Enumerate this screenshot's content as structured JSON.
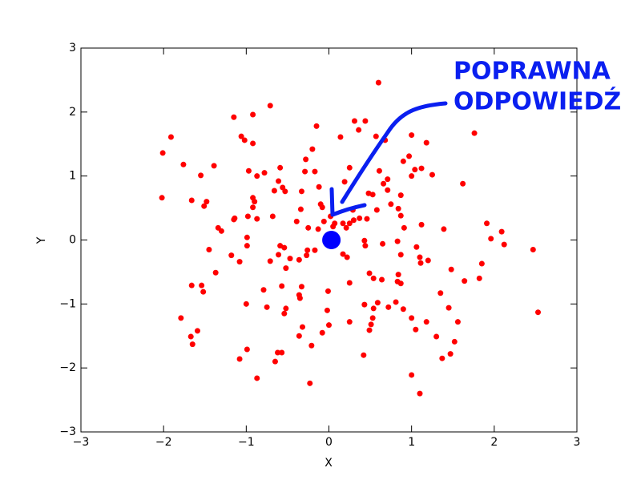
{
  "chart_data": {
    "type": "scatter",
    "xlabel": "X",
    "ylabel": "Y",
    "xlim": [
      -3,
      3
    ],
    "ylim": [
      -3,
      3
    ],
    "xticks": [
      {
        "value": -3,
        "label": "−3"
      },
      {
        "value": -2,
        "label": "−2"
      },
      {
        "value": -1,
        "label": "−1"
      },
      0,
      1,
      2,
      3
    ],
    "yticks": [
      {
        "value": -3,
        "label": "−3"
      },
      {
        "value": -2,
        "label": "−2"
      },
      {
        "value": -1,
        "label": "−1"
      },
      0,
      1,
      2,
      3
    ],
    "series": [
      {
        "color": "#ff0000",
        "x": [
          0.6,
          -0.71,
          -1.15,
          -0.92,
          -1.91,
          -1.06,
          -1.02,
          -0.92,
          -0.15,
          0.31,
          0.44,
          0.36,
          0.14,
          0.57,
          0.68,
          1.0,
          1.18,
          1.76,
          -2.01,
          -1.76,
          -1.39,
          -1.55,
          -0.97,
          -0.78,
          -0.87,
          -0.59,
          -0.28,
          -0.2,
          -0.29,
          -0.17,
          0.25,
          0.61,
          0.9,
          0.97,
          1.12,
          1.04,
          1.25,
          1.0,
          0.71,
          0.66,
          -0.61,
          -0.56,
          -0.53,
          -0.66,
          -0.33,
          -0.12,
          0.19,
          0.48,
          0.53,
          0.71,
          0.87,
          1.62,
          -2.02,
          -1.66,
          -1.48,
          -1.51,
          -0.92,
          -0.9,
          -0.92,
          -1.14,
          -1.15,
          -0.98,
          -0.87,
          -0.68,
          -0.34,
          -0.1,
          -0.08,
          0.02,
          0.29,
          0.37,
          0.46,
          0.58,
          0.75,
          0.84,
          0.87,
          0.07,
          0.17,
          0.25,
          0.3,
          -0.06,
          0.05,
          -0.39,
          -0.25,
          -0.13,
          0.21,
          0.91,
          1.12,
          1.39,
          1.91,
          2.09,
          1.96,
          2.12,
          2.47,
          -1.34,
          -1.3,
          -0.99,
          -0.99,
          -1.45,
          -1.18,
          -1.08,
          -0.59,
          -0.54,
          -0.61,
          -0.47,
          -0.36,
          -0.27,
          -0.26,
          -0.17,
          -0.71,
          -0.52,
          0.17,
          0.22,
          0.43,
          0.44,
          0.65,
          0.83,
          0.87,
          1.06,
          1.1,
          1.2,
          1.11,
          1.48,
          1.85,
          -1.37,
          -1.66,
          -1.54,
          -1.52,
          -0.79,
          -0.57,
          -0.33,
          -0.01,
          0.25,
          0.49,
          0.54,
          0.64,
          0.83,
          0.87,
          0.84,
          1.64,
          1.82,
          1.35,
          -0.35,
          -0.36,
          -1.0,
          -0.75,
          -0.52,
          -0.54,
          -0.02,
          0.43,
          0.59,
          0.54,
          0.72,
          0.81,
          0.9,
          1.45,
          -1.79,
          0.0,
          0.25,
          0.53,
          0.51,
          0.49,
          1.0,
          1.05,
          1.18,
          1.56,
          -1.59,
          -0.32,
          -0.08,
          -1.67,
          -1.65,
          -0.36,
          -0.21,
          -0.99,
          -0.62,
          -0.57,
          0.42,
          1.52,
          1.3,
          1.47,
          1.37,
          -1.08,
          -0.65,
          -0.87,
          1.0,
          -0.23,
          1.1,
          2.53
        ],
        "y": [
          2.46,
          2.1,
          1.92,
          1.96,
          1.61,
          1.62,
          1.56,
          1.51,
          1.78,
          1.86,
          1.86,
          1.72,
          1.61,
          1.62,
          1.56,
          1.64,
          1.52,
          1.67,
          1.36,
          1.18,
          1.16,
          1.01,
          1.08,
          1.05,
          1.0,
          1.13,
          1.26,
          1.42,
          1.07,
          1.07,
          1.13,
          1.08,
          1.23,
          1.31,
          1.12,
          1.1,
          1.02,
          1.0,
          0.95,
          0.88,
          0.92,
          0.82,
          0.76,
          0.77,
          0.76,
          0.83,
          0.91,
          0.73,
          0.71,
          0.78,
          0.7,
          0.88,
          0.66,
          0.62,
          0.6,
          0.53,
          0.66,
          0.6,
          0.51,
          0.34,
          0.32,
          0.37,
          0.33,
          0.37,
          0.48,
          0.56,
          0.51,
          0.37,
          0.47,
          0.34,
          0.33,
          0.47,
          0.56,
          0.49,
          0.38,
          0.26,
          0.26,
          0.26,
          0.31,
          0.29,
          0.21,
          0.29,
          0.19,
          0.17,
          0.19,
          0.19,
          0.24,
          0.17,
          0.26,
          0.13,
          0.02,
          -0.07,
          -0.15,
          0.19,
          0.14,
          0.04,
          -0.09,
          -0.15,
          -0.24,
          -0.34,
          -0.09,
          -0.12,
          -0.23,
          -0.29,
          -0.31,
          -0.24,
          -0.16,
          -0.16,
          -0.33,
          -0.44,
          -0.22,
          -0.27,
          -0.01,
          -0.09,
          -0.06,
          -0.02,
          -0.23,
          -0.11,
          -0.27,
          -0.32,
          -0.36,
          -0.46,
          -0.37,
          -0.51,
          -0.71,
          -0.71,
          -0.81,
          -0.78,
          -0.72,
          -0.73,
          -0.8,
          -0.67,
          -0.52,
          -0.6,
          -0.62,
          -0.65,
          -0.68,
          -0.54,
          -0.64,
          -0.6,
          -0.83,
          -0.91,
          -0.86,
          -1.0,
          -1.05,
          -1.07,
          -1.15,
          -1.1,
          -1.01,
          -0.98,
          -1.07,
          -1.05,
          -0.97,
          -1.08,
          -1.06,
          -1.22,
          -1.33,
          -1.28,
          -1.22,
          -1.32,
          -1.41,
          -1.22,
          -1.4,
          -1.28,
          -1.28,
          -1.42,
          -1.36,
          -1.45,
          -1.51,
          -1.63,
          -1.5,
          -1.65,
          -1.71,
          -1.76,
          -1.76,
          -1.8,
          -1.59,
          -1.51,
          -1.78,
          -1.85,
          -1.86,
          -1.9,
          -2.16,
          -2.11,
          -2.24,
          -2.4,
          -1.13
        ]
      },
      {
        "color": "#0000ff",
        "x": [
          0.03
        ],
        "y": [
          0.0
        ]
      }
    ],
    "annotation": {
      "lines": [
        "POPRAWNA",
        "ODPOWIEDŹ"
      ],
      "color": "#0a1ff0"
    }
  }
}
